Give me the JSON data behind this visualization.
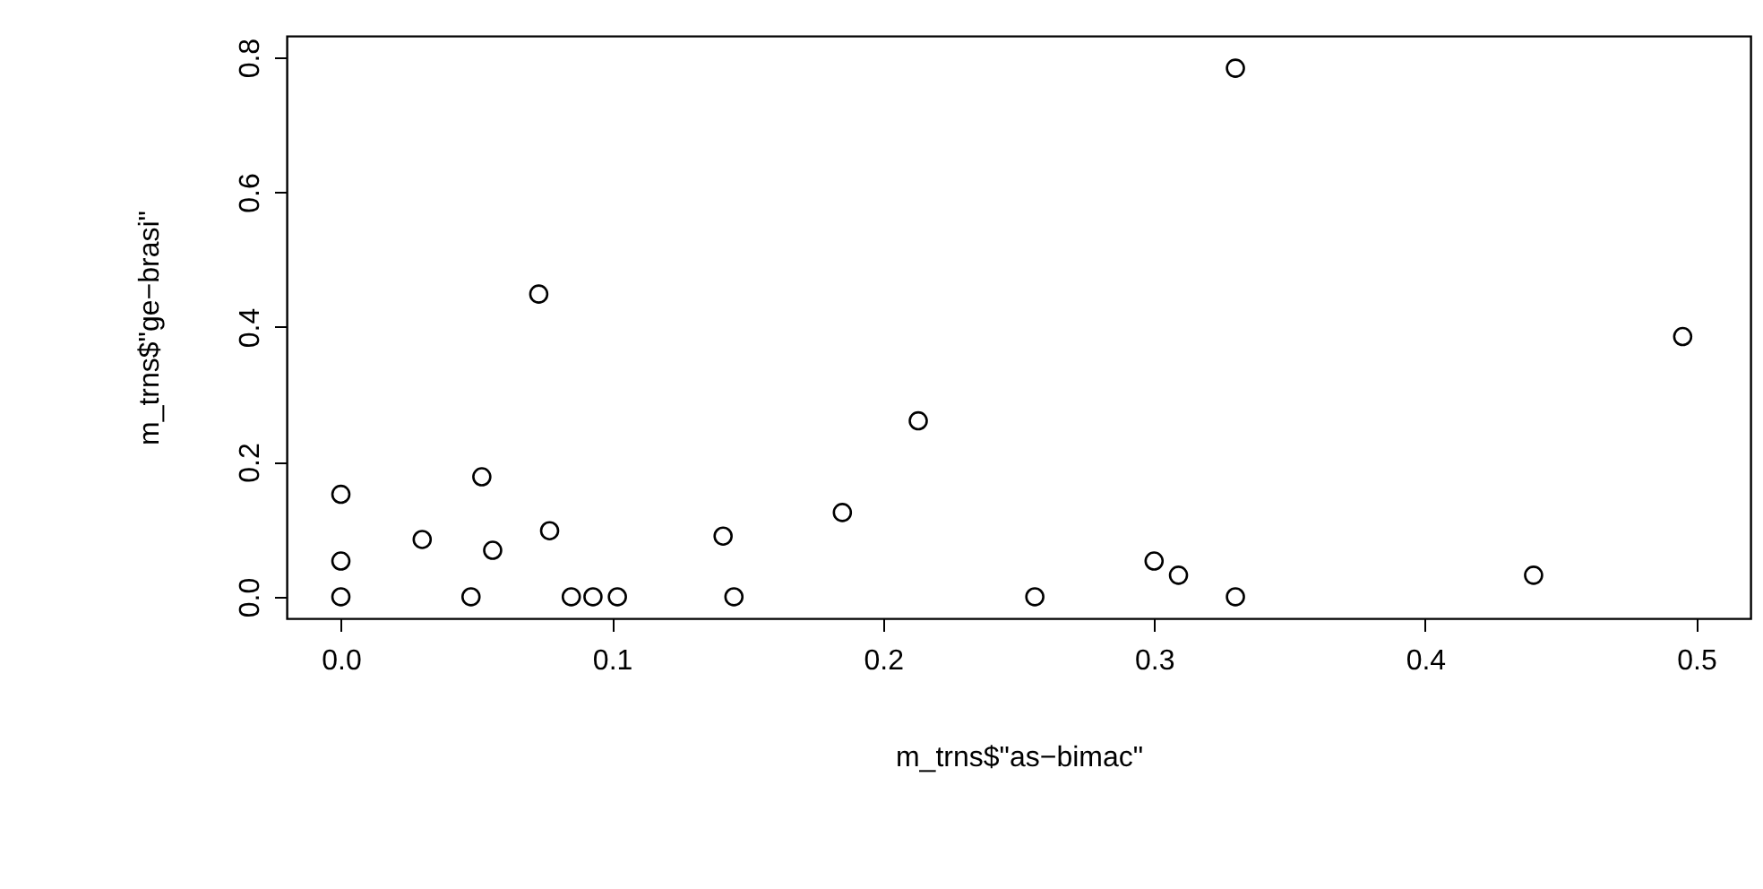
{
  "chart_data": {
    "type": "scatter",
    "xlabel": "m_trns$\"as−bimac\"",
    "ylabel": "m_trns$\"ge−brasi\"",
    "x": [
      0,
      0,
      0,
      0.03,
      0.048,
      0.052,
      0.056,
      0.073,
      0.077,
      0.085,
      0.093,
      0.102,
      0.141,
      0.145,
      0.185,
      0.213,
      0.256,
      0.3,
      0.309,
      0.33,
      0.33,
      0.44,
      0.495
    ],
    "series": [
      {
        "color": "#000000",
        "values": [
          0.152,
          0.053,
          0,
          0.085,
          0,
          0.178,
          0.069,
          0.449,
          0.098,
          0,
          0,
          0,
          0.09,
          0,
          0.125,
          0.261,
          0,
          0.053,
          0.032,
          0,
          0.784,
          0.032,
          0.386
        ]
      }
    ],
    "xlim": [
      -0.02,
      0.52
    ],
    "ylim": [
      -0.032,
      0.832
    ],
    "xticks": [
      {
        "value": 0,
        "label": "0.0"
      },
      {
        "value": 0.1,
        "label": "0.1"
      },
      {
        "value": 0.2,
        "label": "0.2"
      },
      {
        "value": 0.3,
        "label": "0.3"
      },
      {
        "value": 0.4,
        "label": "0.4"
      },
      {
        "value": 0.5,
        "label": "0.5"
      }
    ],
    "yticks": [
      {
        "value": 0,
        "label": "0.0"
      },
      {
        "value": 0.2,
        "label": "0.2"
      },
      {
        "value": 0.4,
        "label": "0.4"
      },
      {
        "value": 0.6,
        "label": "0.6"
      },
      {
        "value": 0.8,
        "label": "0.8"
      }
    ],
    "marker": "circle",
    "grid": false
  }
}
